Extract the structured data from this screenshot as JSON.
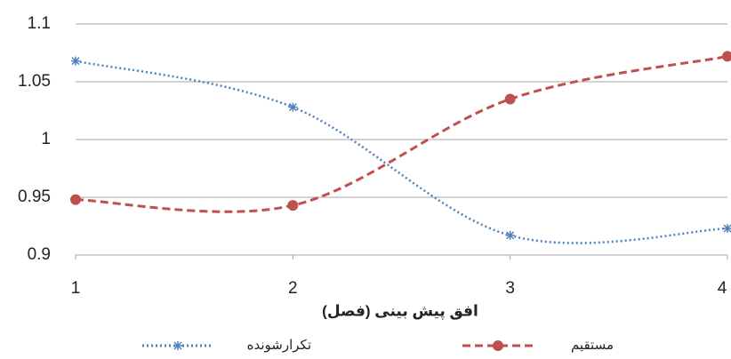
{
  "chart_data": {
    "type": "line",
    "x_label": "افق پیش بینی (فصل)",
    "x": [
      1,
      2,
      3,
      4
    ],
    "xlim": [
      1,
      4
    ],
    "xticks": [
      1,
      2,
      3,
      4
    ],
    "ylim": [
      0.9,
      1.1
    ],
    "yticks": [
      0.9,
      0.95,
      1,
      1.05,
      1.1
    ],
    "grid": true,
    "legend": "bottom",
    "series": [
      {
        "name": "تکرارشونده",
        "color": "#4f81bd",
        "style": "dotted",
        "marker": "star",
        "values": [
          1.068,
          1.028,
          0.917,
          0.923
        ]
      },
      {
        "name": "مستقیم",
        "color": "#c0504d",
        "style": "dashed",
        "marker": "circle",
        "values": [
          0.948,
          0.943,
          1.035,
          1.072
        ]
      }
    ]
  }
}
